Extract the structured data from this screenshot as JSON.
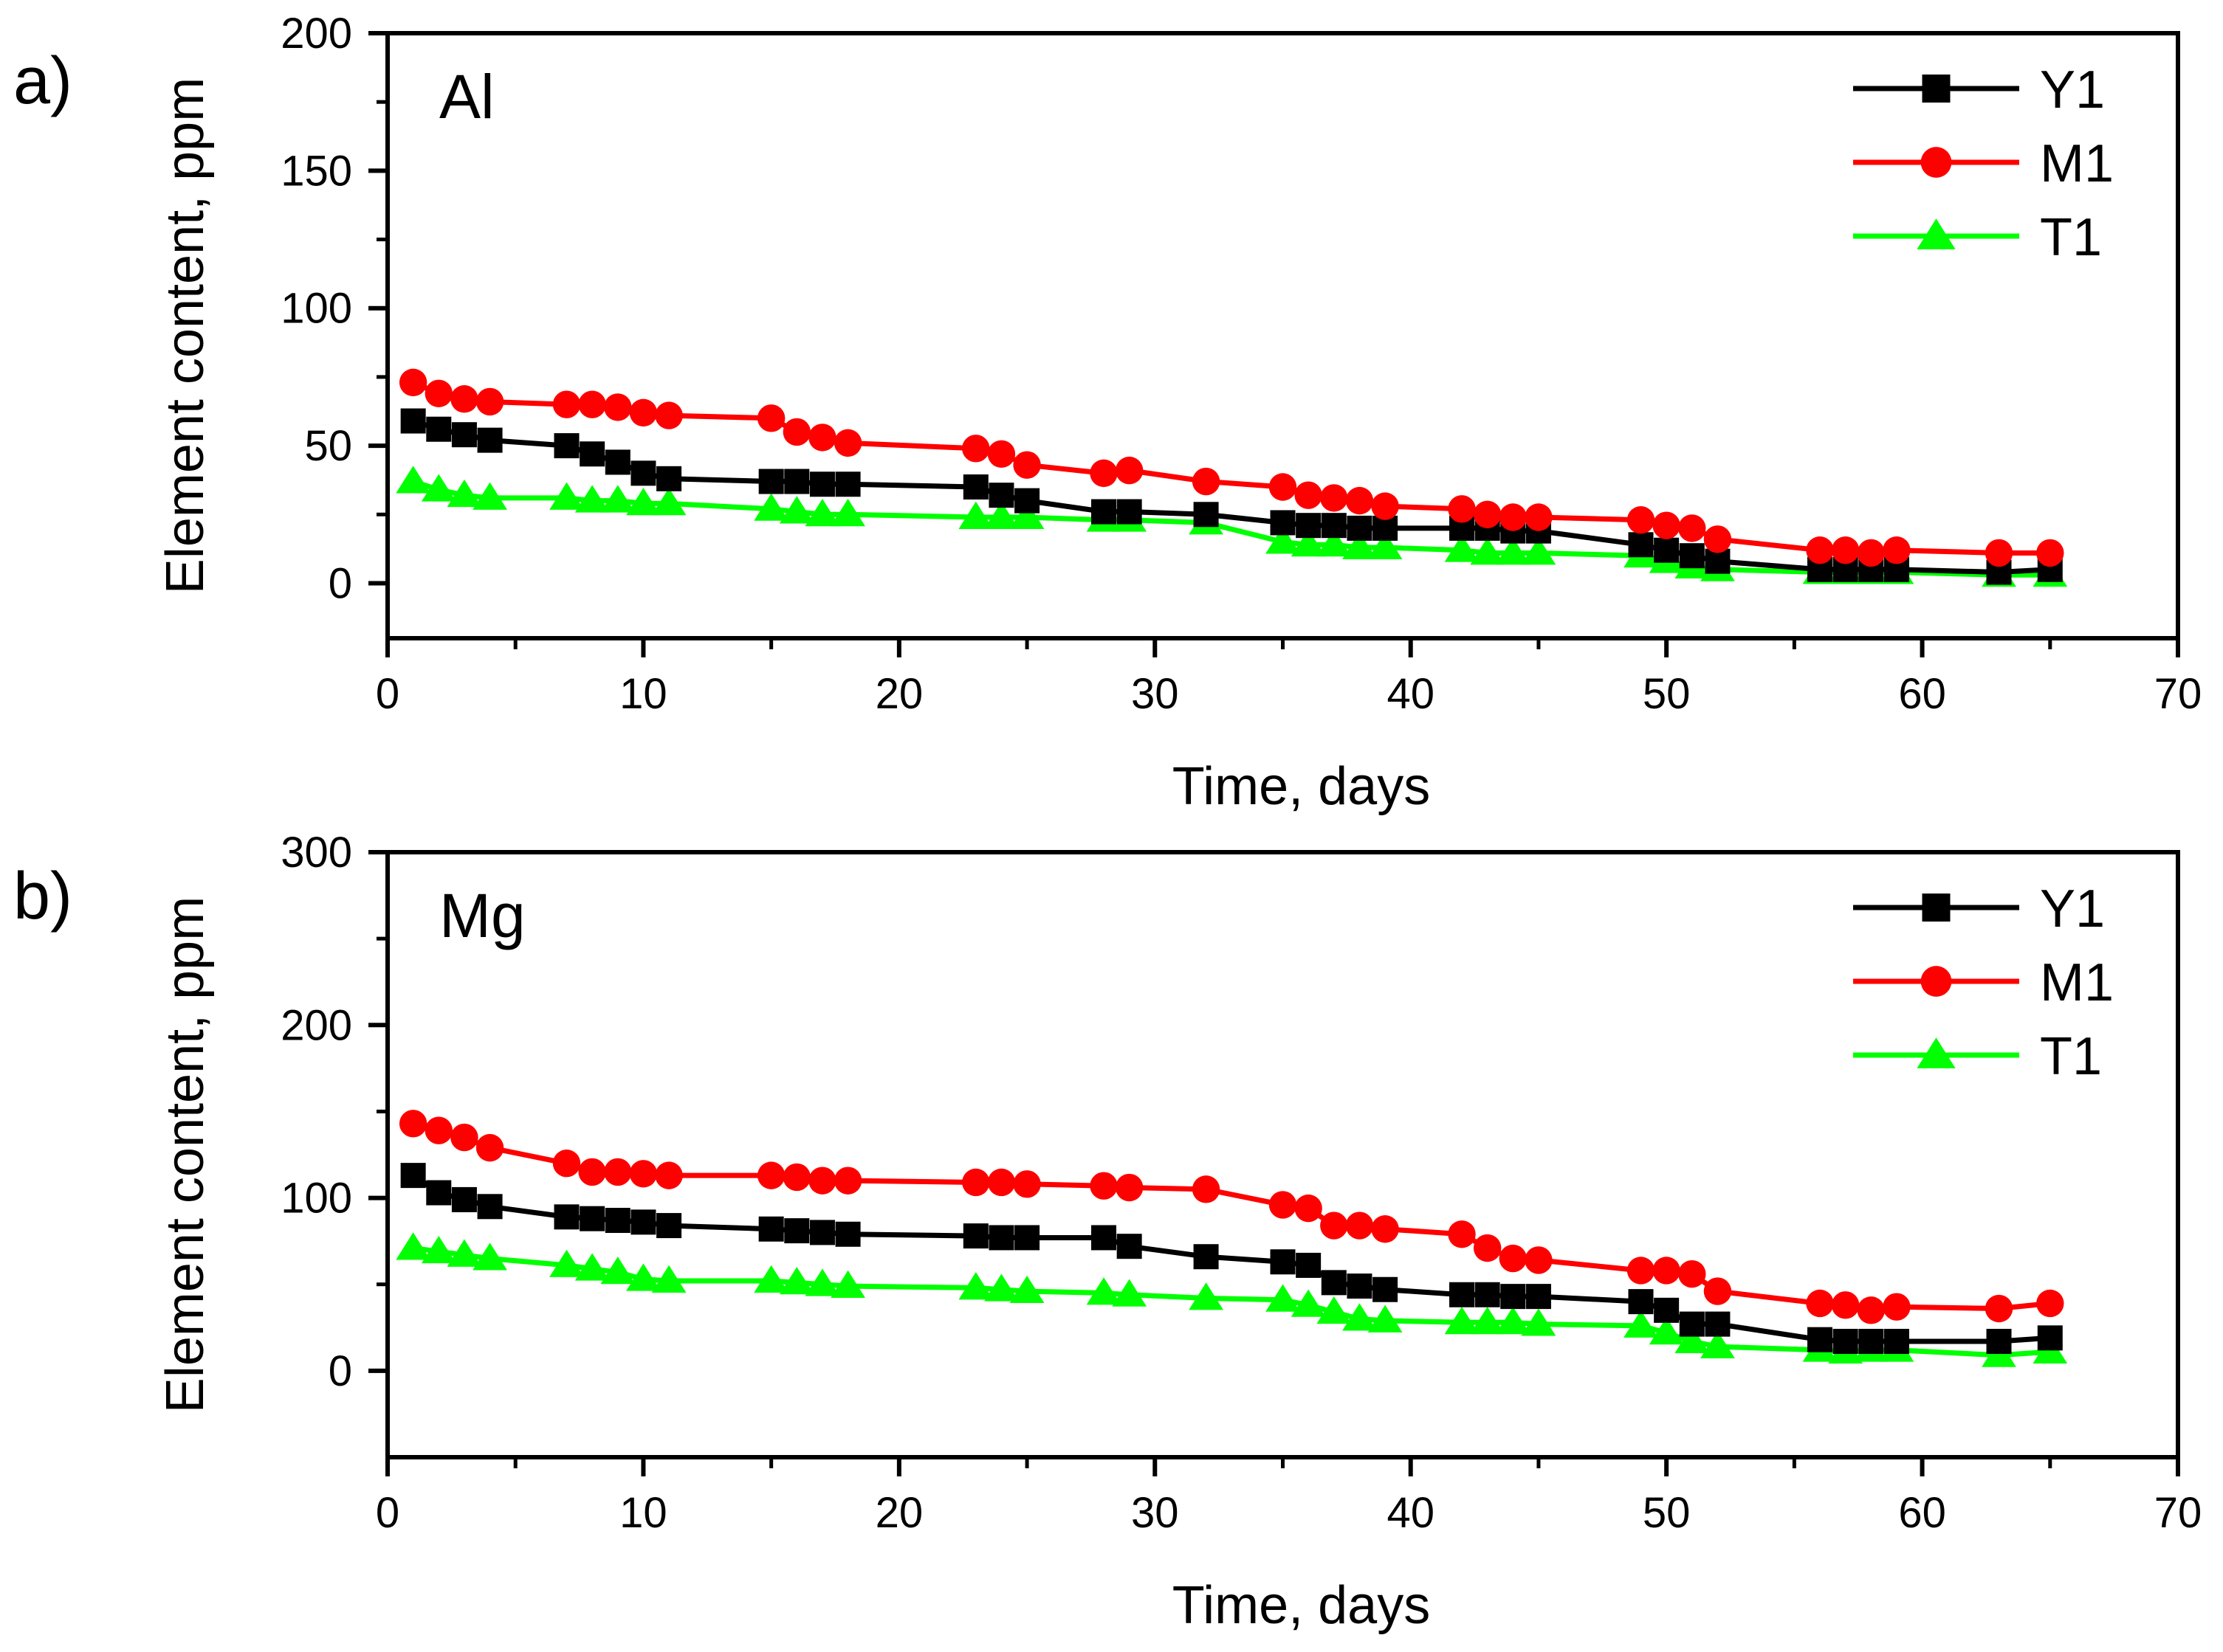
{
  "chart_data": [
    {
      "type": "line",
      "panel_label": "a)",
      "annotation": "Al",
      "xlabel": "Time, days",
      "ylabel": "Element content, ppm",
      "xlim": [
        0,
        70
      ],
      "ylim": [
        -20,
        200
      ],
      "xticks": [
        0,
        10,
        20,
        30,
        40,
        50,
        60,
        70
      ],
      "yticks": [
        0,
        50,
        100,
        150,
        200
      ],
      "xtick_labels": [
        "0",
        "10",
        "20",
        "30",
        "40",
        "50",
        "60",
        "70"
      ],
      "ytick_labels": [
        "0",
        "50",
        "100",
        "150",
        "200"
      ],
      "legend_position": "top-right",
      "grid": false,
      "x": [
        1,
        2,
        3,
        4,
        7,
        8,
        9,
        10,
        11,
        15,
        16,
        17,
        18,
        23,
        24,
        25,
        28,
        29,
        32,
        35,
        36,
        37,
        38,
        39,
        42,
        43,
        44,
        45,
        49,
        50,
        51,
        52,
        56,
        57,
        58,
        59,
        63,
        65
      ],
      "series": [
        {
          "name": "Y1",
          "color": "#000000",
          "marker": "square",
          "values": [
            59,
            56,
            54,
            52,
            50,
            47,
            44,
            40,
            38,
            37,
            37,
            36,
            36,
            35,
            32,
            30,
            26,
            26,
            25,
            22,
            21,
            21,
            20,
            20,
            20,
            20,
            19,
            19,
            14,
            12,
            10,
            8,
            5,
            5,
            5,
            5,
            4,
            5
          ]
        },
        {
          "name": "M1",
          "color": "#ff0000",
          "marker": "circle",
          "values": [
            73,
            69,
            67,
            66,
            65,
            65,
            64,
            62,
            61,
            60,
            55,
            53,
            51,
            49,
            47,
            43,
            40,
            41,
            37,
            35,
            32,
            31,
            30,
            28,
            27,
            25,
            24,
            24,
            23,
            21,
            20,
            16,
            12,
            12,
            11,
            12,
            11,
            11
          ]
        },
        {
          "name": "T1",
          "color": "#00ff00",
          "marker": "triangle",
          "values": [
            37,
            34,
            32,
            31,
            31,
            30,
            30,
            29,
            29,
            27,
            26,
            25,
            25,
            24,
            24,
            24,
            23,
            23,
            22,
            15,
            14,
            14,
            13,
            13,
            12,
            11,
            11,
            11,
            10,
            8,
            6,
            5,
            4,
            4,
            4,
            4,
            3,
            3
          ]
        }
      ]
    },
    {
      "type": "line",
      "panel_label": "b)",
      "annotation": "Mg",
      "xlabel": "Time, days",
      "ylabel": "Element content, ppm",
      "xlim": [
        0,
        70
      ],
      "ylim": [
        -50,
        300
      ],
      "xticks": [
        0,
        10,
        20,
        30,
        40,
        50,
        60,
        70
      ],
      "yticks": [
        0,
        100,
        200,
        300
      ],
      "xtick_labels": [
        "0",
        "10",
        "20",
        "30",
        "40",
        "50",
        "60",
        "70"
      ],
      "ytick_labels": [
        "0",
        "100",
        "200",
        "300"
      ],
      "legend_position": "top-right",
      "grid": false,
      "x": [
        1,
        2,
        3,
        4,
        7,
        8,
        9,
        10,
        11,
        15,
        16,
        17,
        18,
        23,
        24,
        25,
        28,
        29,
        32,
        35,
        36,
        37,
        38,
        39,
        42,
        43,
        44,
        45,
        49,
        50,
        51,
        52,
        56,
        57,
        58,
        59,
        63,
        65
      ],
      "series": [
        {
          "name": "Y1",
          "color": "#000000",
          "marker": "square",
          "values": [
            113,
            103,
            99,
            95,
            89,
            88,
            87,
            86,
            84,
            82,
            81,
            80,
            79,
            78,
            77,
            77,
            77,
            72,
            66,
            63,
            61,
            51,
            49,
            47,
            44,
            44,
            43,
            43,
            40,
            35,
            27,
            27,
            18,
            17,
            17,
            17,
            17,
            19
          ]
        },
        {
          "name": "M1",
          "color": "#ff0000",
          "marker": "circle",
          "values": [
            143,
            139,
            135,
            129,
            120,
            115,
            115,
            114,
            113,
            113,
            112,
            110,
            110,
            109,
            109,
            108,
            107,
            106,
            105,
            96,
            94,
            84,
            84,
            82,
            79,
            71,
            65,
            64,
            58,
            58,
            56,
            46,
            39,
            38,
            35,
            37,
            36,
            39
          ]
        },
        {
          "name": "T1",
          "color": "#00ff00",
          "marker": "triangle",
          "values": [
            71,
            69,
            67,
            65,
            61,
            59,
            57,
            53,
            52,
            52,
            51,
            50,
            49,
            48,
            47,
            46,
            45,
            44,
            42,
            41,
            38,
            34,
            30,
            29,
            28,
            28,
            28,
            27,
            26,
            22,
            17,
            14,
            12,
            11,
            12,
            12,
            9,
            11
          ]
        }
      ]
    }
  ]
}
